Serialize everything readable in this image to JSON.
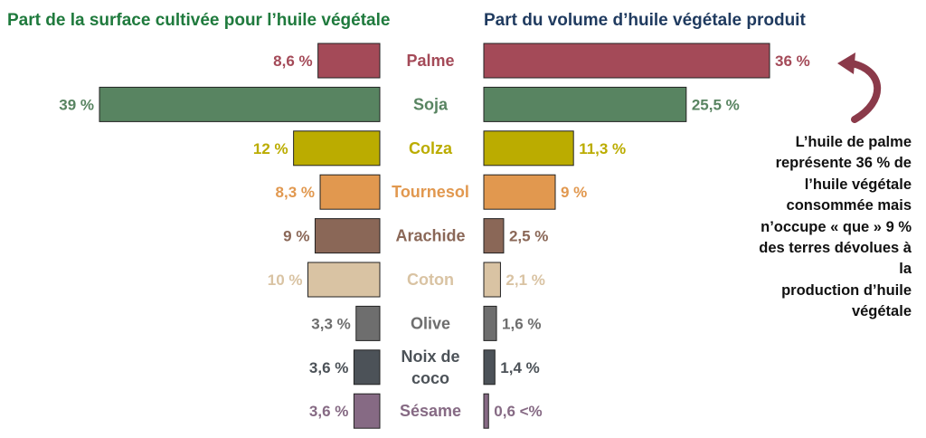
{
  "chart_data": {
    "type": "bar",
    "layout": "butterfly",
    "left_title": "Part de la surface cultivée pour l’huile végétale",
    "right_title": "Part du volume d’huile végétale produit",
    "categories": [
      {
        "name": "Palme",
        "lines": [
          "Palme"
        ],
        "color": "#a44a58",
        "left": 8.6,
        "left_label": "8,6 %",
        "right": 36,
        "right_label": "36 %"
      },
      {
        "name": "Soja",
        "lines": [
          "Soja"
        ],
        "color": "#588461",
        "left": 39,
        "left_label": "39 %",
        "right": 25.5,
        "right_label": "25,5 %"
      },
      {
        "name": "Colza",
        "lines": [
          "Colza"
        ],
        "color": "#bbac00",
        "left": 12,
        "left_label": "12 %",
        "right": 11.3,
        "right_label": "11,3 %"
      },
      {
        "name": "Tournesol",
        "lines": [
          "Tournesol"
        ],
        "color": "#e1984f",
        "left": 8.3,
        "left_label": "8,3 %",
        "right": 9,
        "right_label": "9 %"
      },
      {
        "name": "Arachide",
        "lines": [
          "Arachide"
        ],
        "color": "#8a6757",
        "left": 9,
        "left_label": "9 %",
        "right": 2.5,
        "right_label": "2,5 %"
      },
      {
        "name": "Coton",
        "lines": [
          "Coton"
        ],
        "color": "#d9c3a3",
        "left": 10,
        "left_label": "10 %",
        "right": 2.1,
        "right_label": "2,1 %"
      },
      {
        "name": "Olive",
        "lines": [
          "Olive"
        ],
        "color": "#6e6e6e",
        "left": 3.3,
        "left_label": "3,3 %",
        "right": 1.6,
        "right_label": "1,6 %"
      },
      {
        "name": "Noix de coco",
        "lines": [
          "Noix de",
          "coco"
        ],
        "color": "#4c5258",
        "left": 3.6,
        "left_label": "3,6 %",
        "right": 1.4,
        "right_label": "1,4 %"
      },
      {
        "name": "Sésame",
        "lines": [
          "Sésame"
        ],
        "color": "#866a84",
        "left": 3.6,
        "left_label": "3,6 %",
        "right": 0.6,
        "right_label": "0,6 <%"
      }
    ],
    "title_colors": {
      "left": "#1f7a3d",
      "right": "#1f3a5f"
    },
    "arrow_color": "#8b3a4a"
  },
  "annotation": {
    "lines": [
      "L’huile de palme",
      "représente 36 % de",
      "l’huile végétale",
      "consommée mais",
      "n’occupe « que » 9 %",
      "des terres dévolues à la",
      "production d’huile",
      "végétale"
    ]
  }
}
